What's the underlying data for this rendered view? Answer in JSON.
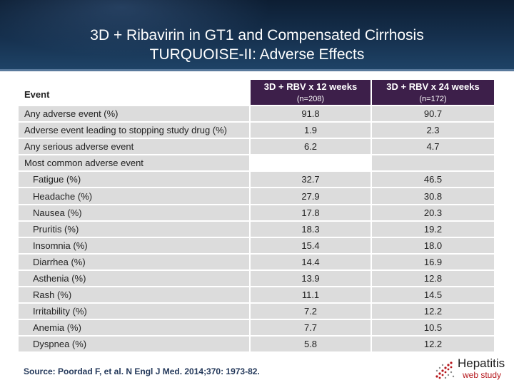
{
  "title": {
    "line1": "3D + Ribavirin in GT1 and Compensated Cirrhosis",
    "line2": "TURQUOISE-II: Adverse Effects"
  },
  "table": {
    "event_header": "Event",
    "arms": [
      {
        "name": "3D + RBV x 12 weeks",
        "n": "(n=208)"
      },
      {
        "name": "3D + RBV x 24 weeks",
        "n": "(n=172)"
      }
    ],
    "rows": [
      {
        "label": "Any adverse event (%)",
        "v12": "91.8",
        "v24": "90.7"
      },
      {
        "label": "Adverse event leading to stopping study drug (%)",
        "v12": "1.9",
        "v24": "2.3"
      },
      {
        "label": "Any serious adverse event",
        "v12": "6.2",
        "v24": "4.7"
      }
    ],
    "section_label": "Most common adverse event",
    "common": [
      {
        "label": "Fatigue (%)",
        "v12": "32.7",
        "v24": "46.5"
      },
      {
        "label": "Headache (%)",
        "v12": "27.9",
        "v24": "30.8"
      },
      {
        "label": "Nausea (%)",
        "v12": "17.8",
        "v24": "20.3"
      },
      {
        "label": "Pruritis (%)",
        "v12": "18.3",
        "v24": "19.2"
      },
      {
        "label": "Insomnia (%)",
        "v12": "15.4",
        "v24": "18.0"
      },
      {
        "label": "Diarrhea (%)",
        "v12": "14.4",
        "v24": "16.9"
      },
      {
        "label": "Asthenia (%)",
        "v12": "13.9",
        "v24": "12.8"
      },
      {
        "label": "Rash (%)",
        "v12": "11.1",
        "v24": "14.5"
      },
      {
        "label": "Irritability (%)",
        "v12": "7.2",
        "v24": "12.2"
      },
      {
        "label": "Anemia (%)",
        "v12": "7.7",
        "v24": "10.5"
      },
      {
        "label": "Dyspnea (%)",
        "v12": "5.8",
        "v24": "12.2"
      }
    ]
  },
  "source": "Source: Poordad F, et al. N Engl J Med. 2014;370: 1973-82.",
  "logo": {
    "title": "Hepatitis",
    "subtitle": "web study",
    "icon": "hepatitis-logo-icon"
  },
  "colors": {
    "header_bg": "#16314f",
    "arm_header_bg": "#3d1f4a",
    "row_bg": "#dcdcdc",
    "logo_red": "#b5161b"
  }
}
